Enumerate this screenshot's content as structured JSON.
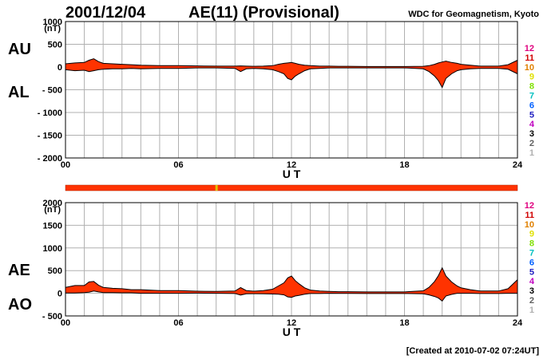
{
  "header": {
    "date": "2001/12/04",
    "title": "AE(11) (Provisional)",
    "source": "WDC for Geomagnetism, Kyoto"
  },
  "footer": {
    "created": "[Created at 2010-07-02 07:24UT]"
  },
  "station_legend": {
    "labels": [
      "12",
      "11",
      "10",
      "9",
      "8",
      "7",
      "6",
      "5",
      "4",
      "3",
      "2",
      "1"
    ],
    "colors": [
      "#e0007f",
      "#d00000",
      "#e08000",
      "#e0e000",
      "#80e000",
      "#00c0c0",
      "#0060ff",
      "#2020c0",
      "#c000c0",
      "#000000",
      "#606060",
      "#b0b0b0"
    ]
  },
  "colors": {
    "fill": "#ff3300",
    "outline": "#000000",
    "grid": "#b0b0b0",
    "station_bar": "#ff3300",
    "station_bar_mark": "#e0c000"
  },
  "chart_data": [
    {
      "type": "area",
      "panel": "AU/AL",
      "side_labels": {
        "upper": "AU",
        "lower": "AL"
      },
      "xlabel": "U T",
      "yunit": "(nT)",
      "xlim": [
        0,
        24
      ],
      "ylim": [
        -2000,
        1000
      ],
      "xticks": [
        0,
        6,
        12,
        18,
        24
      ],
      "xtick_labels": [
        "00",
        "06",
        "12",
        "18",
        "24"
      ],
      "yticks": [
        1000,
        500,
        0,
        -500,
        -1000,
        -1500,
        -2000
      ],
      "ytick_labels": [
        "1000",
        "500",
        "0",
        "- 500",
        "- 1000",
        "- 1500",
        "- 2000"
      ],
      "grid": true,
      "x": [
        0,
        0.5,
        1,
        1.25,
        1.5,
        1.75,
        2,
        2.5,
        3,
        3.5,
        4,
        5,
        6,
        7,
        8,
        9,
        9.3,
        9.6,
        10,
        10.5,
        11,
        11.3,
        11.6,
        11.8,
        12,
        12.2,
        12.4,
        12.7,
        13,
        13.5,
        14,
        14.5,
        15,
        16,
        17,
        18,
        19,
        19.3,
        19.6,
        19.8,
        20,
        20.2,
        20.5,
        20.8,
        21,
        21.5,
        22,
        23,
        23.5,
        24
      ],
      "series": [
        {
          "name": "AU",
          "values": [
            70,
            90,
            100,
            150,
            180,
            120,
            80,
            70,
            60,
            50,
            40,
            30,
            30,
            25,
            20,
            20,
            25,
            20,
            15,
            20,
            30,
            60,
            80,
            90,
            100,
            80,
            60,
            40,
            30,
            20,
            20,
            15,
            15,
            10,
            10,
            10,
            15,
            30,
            60,
            90,
            110,
            130,
            100,
            80,
            60,
            40,
            20,
            20,
            50,
            150
          ]
        },
        {
          "name": "AL",
          "values": [
            -60,
            -80,
            -70,
            -100,
            -80,
            -60,
            -50,
            -40,
            -40,
            -30,
            -40,
            -30,
            -30,
            -20,
            -20,
            -30,
            -100,
            -40,
            -30,
            -40,
            -60,
            -100,
            -150,
            -250,
            -280,
            -200,
            -150,
            -80,
            -40,
            -30,
            -20,
            -20,
            -20,
            -20,
            -20,
            -20,
            -40,
            -100,
            -200,
            -300,
            -450,
            -250,
            -150,
            -80,
            -60,
            -40,
            -30,
            -30,
            -50,
            -150
          ]
        }
      ]
    },
    {
      "type": "area",
      "panel": "AE/AO",
      "side_labels": {
        "upper": "AE",
        "lower": "AO"
      },
      "xlabel": "U T",
      "yunit": "(nT)",
      "xlim": [
        0,
        24
      ],
      "ylim": [
        -500,
        2000
      ],
      "xticks": [
        0,
        6,
        12,
        18,
        24
      ],
      "xtick_labels": [
        "00",
        "06",
        "12",
        "18",
        "24"
      ],
      "yticks": [
        2000,
        1500,
        1000,
        500,
        0,
        -500
      ],
      "ytick_labels": [
        "2000",
        "1500",
        "1000",
        "500",
        "0",
        "- 500"
      ],
      "grid": true,
      "x": [
        0,
        0.5,
        1,
        1.25,
        1.5,
        1.75,
        2,
        2.5,
        3,
        3.5,
        4,
        5,
        6,
        7,
        8,
        9,
        9.3,
        9.6,
        10,
        10.5,
        11,
        11.3,
        11.6,
        11.8,
        12,
        12.2,
        12.4,
        12.7,
        13,
        13.5,
        14,
        14.5,
        15,
        16,
        17,
        18,
        19,
        19.3,
        19.6,
        19.8,
        20,
        20.2,
        20.5,
        20.8,
        21,
        21.5,
        22,
        23,
        23.5,
        24
      ],
      "series": [
        {
          "name": "AE",
          "values": [
            130,
            170,
            170,
            250,
            260,
            180,
            130,
            110,
            100,
            80,
            80,
            60,
            60,
            45,
            40,
            50,
            125,
            60,
            45,
            60,
            90,
            160,
            230,
            340,
            380,
            280,
            210,
            120,
            70,
            50,
            40,
            35,
            35,
            30,
            30,
            30,
            55,
            130,
            260,
            390,
            560,
            380,
            250,
            160,
            120,
            80,
            50,
            50,
            100,
            300
          ]
        },
        {
          "name": "AO",
          "values": [
            5,
            5,
            15,
            25,
            50,
            30,
            15,
            15,
            10,
            10,
            0,
            0,
            0,
            3,
            0,
            -5,
            -38,
            -10,
            -8,
            -10,
            -15,
            -20,
            -35,
            -80,
            -90,
            -60,
            -45,
            -20,
            -5,
            -5,
            0,
            -3,
            -3,
            -5,
            -5,
            -5,
            -13,
            -35,
            -70,
            -105,
            -170,
            -60,
            -25,
            0,
            0,
            0,
            -5,
            -5,
            0,
            0
          ]
        }
      ]
    }
  ]
}
